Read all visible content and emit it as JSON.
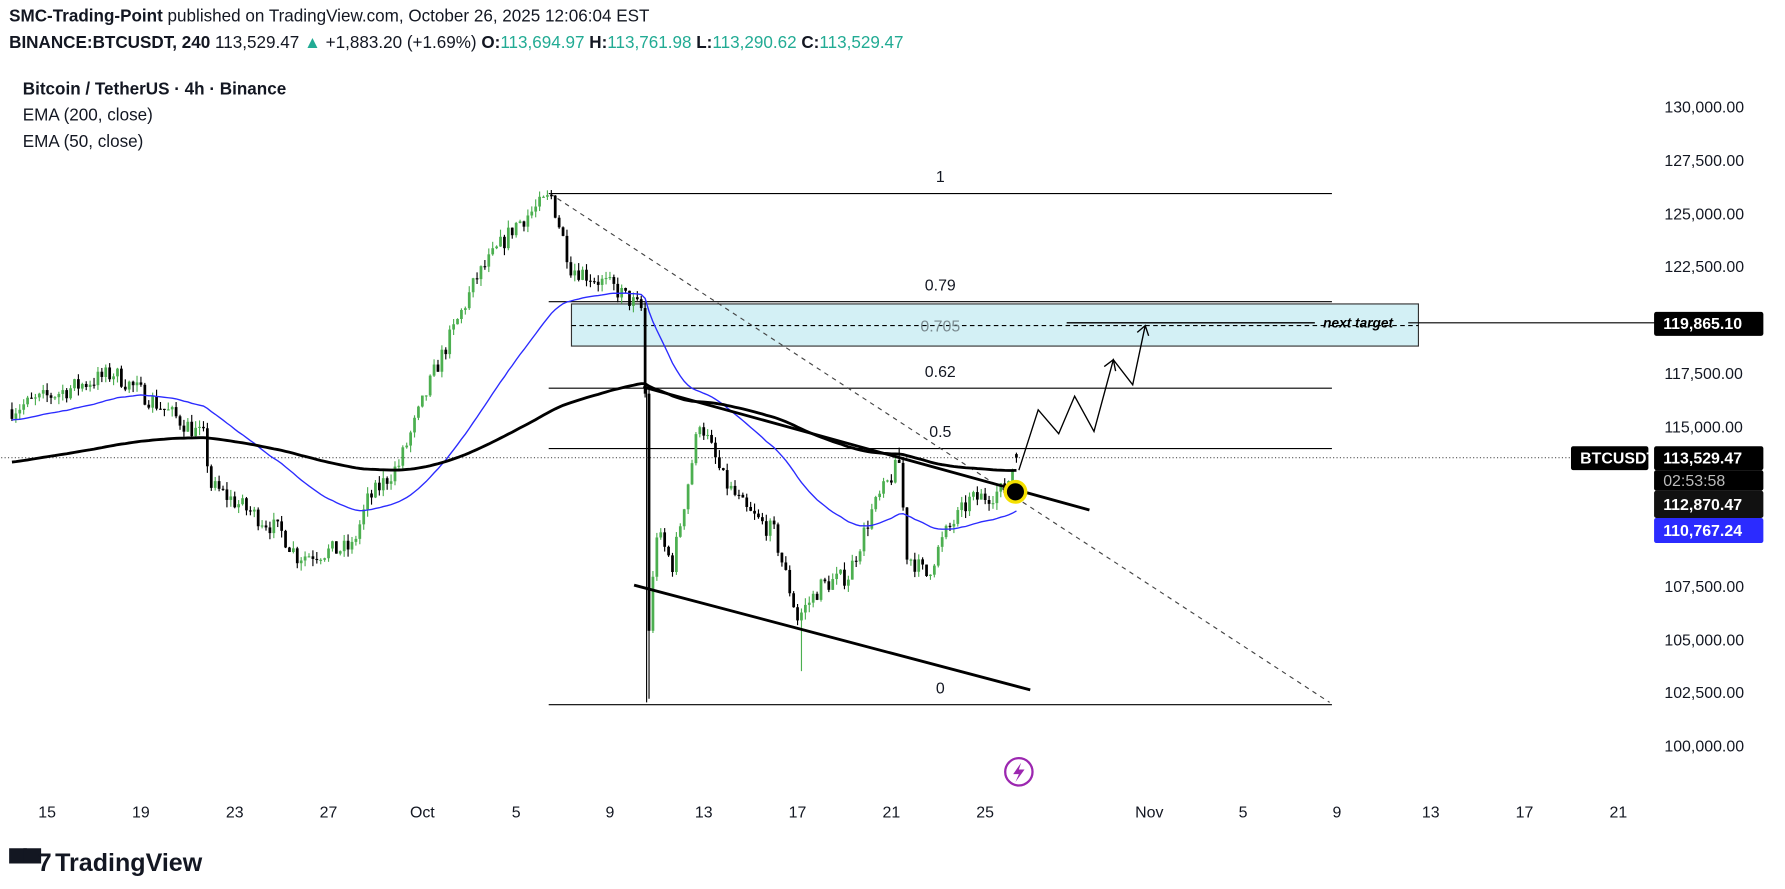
{
  "header": {
    "author": "SMC-Trading-Point",
    "published": "published on TradingView.com, October 26, 2025 12:06:04 EST",
    "symbol": "BINANCE:BTCUSDT, 240",
    "last": "113,529.47",
    "change": "+1,883.20 (+1.69%)",
    "o_label": "O:",
    "o": "113,694.97",
    "h_label": "H:",
    "h": "113,761.98",
    "l_label": "L:",
    "l": "113,290.62",
    "c_label": "C:",
    "c": "113,529.47"
  },
  "legend": {
    "title": "Bitcoin / TetherUS · 4h · Binance",
    "ema200": "EMA (200, close)",
    "ema50": "EMA (50, close)"
  },
  "price_axis": {
    "ticks": [
      "130,000.00",
      "127,500.00",
      "125,000.00",
      "122,500.00",
      "117,500.00",
      "115,000.00",
      "107,500.00",
      "105,000.00",
      "102,500.00",
      "100,000.00"
    ],
    "tick_values": [
      130000,
      127500,
      125000,
      122500,
      117500,
      115000,
      107500,
      105000,
      102500,
      100000
    ],
    "target_badge": "119,865.10",
    "symbol_badge": "BTCUSDT",
    "last_price_badge": "113,529.47",
    "countdown": "02:53:58",
    "ema200_badge": "112,870.47",
    "ema50_badge": "110,767.24"
  },
  "time_axis": {
    "labels": [
      "15",
      "19",
      "23",
      "27",
      "Oct",
      "5",
      "9",
      "13",
      "17",
      "21",
      "25",
      "Nov",
      "5",
      "9",
      "13",
      "17",
      "21"
    ],
    "dates": [
      "2025-09-15",
      "2025-09-19",
      "2025-09-23",
      "2025-09-27",
      "2025-10-01",
      "2025-10-05",
      "2025-10-09",
      "2025-10-13",
      "2025-10-17",
      "2025-10-21",
      "2025-10-25",
      "2025-11-01",
      "2025-11-05",
      "2025-11-09",
      "2025-11-13",
      "2025-11-17",
      "2025-11-21"
    ]
  },
  "drawings": {
    "fib_levels": [
      {
        "label": "1",
        "price": 125936
      },
      {
        "label": "0.79",
        "price": 120856
      },
      {
        "label": "0.62",
        "price": 116792
      },
      {
        "label": "0.5",
        "price": 113957
      },
      {
        "label": "0",
        "price": 101925
      }
    ],
    "zone": {
      "top": 120749,
      "bottom": 118770,
      "mid_label": "0.705",
      "mid_price": 119733,
      "color": "#d3f0f5"
    },
    "target": {
      "label": "next target",
      "price": 119865.1
    }
  },
  "colors": {
    "up": "#4caf50",
    "down": "#000000",
    "ema50": "#2b2bff",
    "ema200": "#000000",
    "marker": "#f5e000",
    "lightning": "#9c27b0"
  },
  "chart_data": {
    "type": "candlestick",
    "timeframe": "4h",
    "ylim": [
      98000,
      131500
    ],
    "price_path": [
      [
        "2025-09-13T12:00",
        115800
      ],
      [
        "2025-09-17T20:00",
        117500
      ],
      [
        "2025-09-21T16:00",
        114500
      ],
      [
        "2025-09-22T00:00",
        112200
      ],
      [
        "2025-09-25T00:00",
        110000
      ],
      [
        "2025-09-25T16:00",
        108900
      ],
      [
        "2025-09-28T00:00",
        109300
      ],
      [
        "2025-09-28T16:00",
        111500
      ],
      [
        "2025-09-30T00:00",
        113200
      ],
      [
        "2025-10-01T12:00",
        117500
      ],
      [
        "2025-10-03T08:00",
        122000
      ],
      [
        "2025-10-05T00:00",
        124500
      ],
      [
        "2025-10-06T12:00",
        125800
      ],
      [
        "2025-10-07T08:00",
        122500
      ],
      [
        "2025-10-09T04:00",
        121500
      ],
      [
        "2025-10-10T08:00",
        120500
      ],
      [
        "2025-10-10T12:00",
        116500
      ],
      [
        "2025-10-10T16:00",
        105500
      ],
      [
        "2025-10-11T00:00",
        110000
      ],
      [
        "2025-10-11T16:00",
        108500
      ],
      [
        "2025-10-12T20:00",
        115300
      ],
      [
        "2025-10-13T20:00",
        112500
      ],
      [
        "2025-10-14T20:00",
        111000
      ],
      [
        "2025-10-16T00:00",
        110000
      ],
      [
        "2025-10-17T00:00",
        106000
      ],
      [
        "2025-10-18T00:00",
        107500
      ],
      [
        "2025-10-19T04:00",
        108000
      ],
      [
        "2025-10-20T04:00",
        111000
      ],
      [
        "2025-10-21T08:00",
        113300
      ],
      [
        "2025-10-21T16:00",
        109000
      ],
      [
        "2025-10-22T12:00",
        108000
      ],
      [
        "2025-10-23T08:00",
        110000
      ],
      [
        "2025-10-24T08:00",
        111500
      ],
      [
        "2025-10-25T20:00",
        112000
      ],
      [
        "2025-10-26T08:00",
        113529.47
      ]
    ],
    "extreme_wicks": [
      {
        "time": "2025-10-06T12:00",
        "high": 126100
      },
      {
        "time": "2025-10-10T16:00",
        "low": 102200
      },
      {
        "time": "2025-10-17T04:00",
        "low": 103500
      },
      {
        "time": "2025-10-21T08:00",
        "high": 114000
      }
    ],
    "last_candle": {
      "open": 113694.97,
      "high": 113761.98,
      "low": 113290.62,
      "close": 113529.47
    },
    "ema_periods": [
      200,
      50
    ],
    "ema_last": {
      "ema200": 112870.47,
      "ema50": 110767.24
    }
  }
}
